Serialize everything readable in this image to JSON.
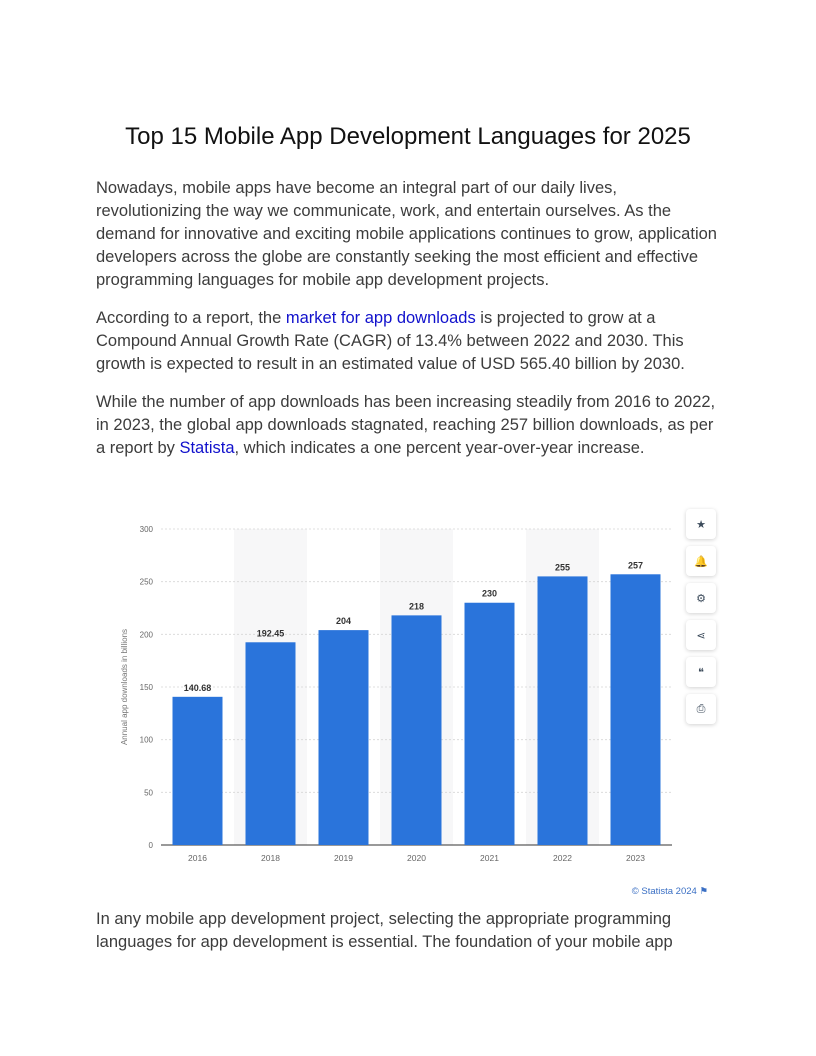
{
  "title": "Top 15 Mobile App Development Languages for 2025",
  "p1": "Nowadays, mobile apps have become an integral part of our daily lives, revolutionizing the way we communicate, work, and entertain ourselves. As the demand for innovative and exciting mobile applications continues to grow, application developers across the globe are constantly seeking the most efficient and effective programming languages for mobile app development projects.",
  "p2": {
    "before": "According to a report, the ",
    "link": "market for app downloads",
    "after": " is projected to grow at a Compound Annual Growth Rate (CAGR) of 13.4% between 2022 and 2030. This growth is expected to result in an estimated value of USD 565.40 billion by 2030."
  },
  "p3": {
    "before": "While the number of app downloads has been increasing steadily from 2016 to 2022, in 2023, the global app downloads stagnated, reaching 257 billion downloads, as per a report by ",
    "link": "Statista",
    "after": ", which indicates a one percent year-over-year increase."
  },
  "p4": "In any mobile app development project, selecting the appropriate programming languages for app development is essential. The foundation of your mobile app",
  "chart_data": {
    "type": "bar",
    "categories": [
      "2016",
      "2018",
      "2019",
      "2020",
      "2021",
      "2022",
      "2023"
    ],
    "values": [
      140.68,
      192.45,
      204,
      218,
      230,
      255,
      257
    ],
    "value_labels": [
      "140.68",
      "192.45",
      "204",
      "218",
      "230",
      "255",
      "257"
    ],
    "ylabel": "Annual app downloads in billions",
    "yticks": [
      0,
      50,
      100,
      150,
      200,
      250,
      300
    ],
    "ylim": [
      0,
      300
    ],
    "bar_color": "#2a74db",
    "grid": true,
    "credit": "© Statista 2024"
  },
  "toolbar": [
    {
      "name": "star-icon",
      "glyph": "★"
    },
    {
      "name": "bell-icon",
      "glyph": "🔔"
    },
    {
      "name": "gear-icon",
      "glyph": "⚙"
    },
    {
      "name": "share-icon",
      "glyph": "⋖"
    },
    {
      "name": "quote-icon",
      "glyph": "❝"
    },
    {
      "name": "print-icon",
      "glyph": "⎙"
    }
  ],
  "colors": {
    "link": "#1111cc",
    "bar": "#2a74db",
    "credit": "#3a6fc4"
  }
}
